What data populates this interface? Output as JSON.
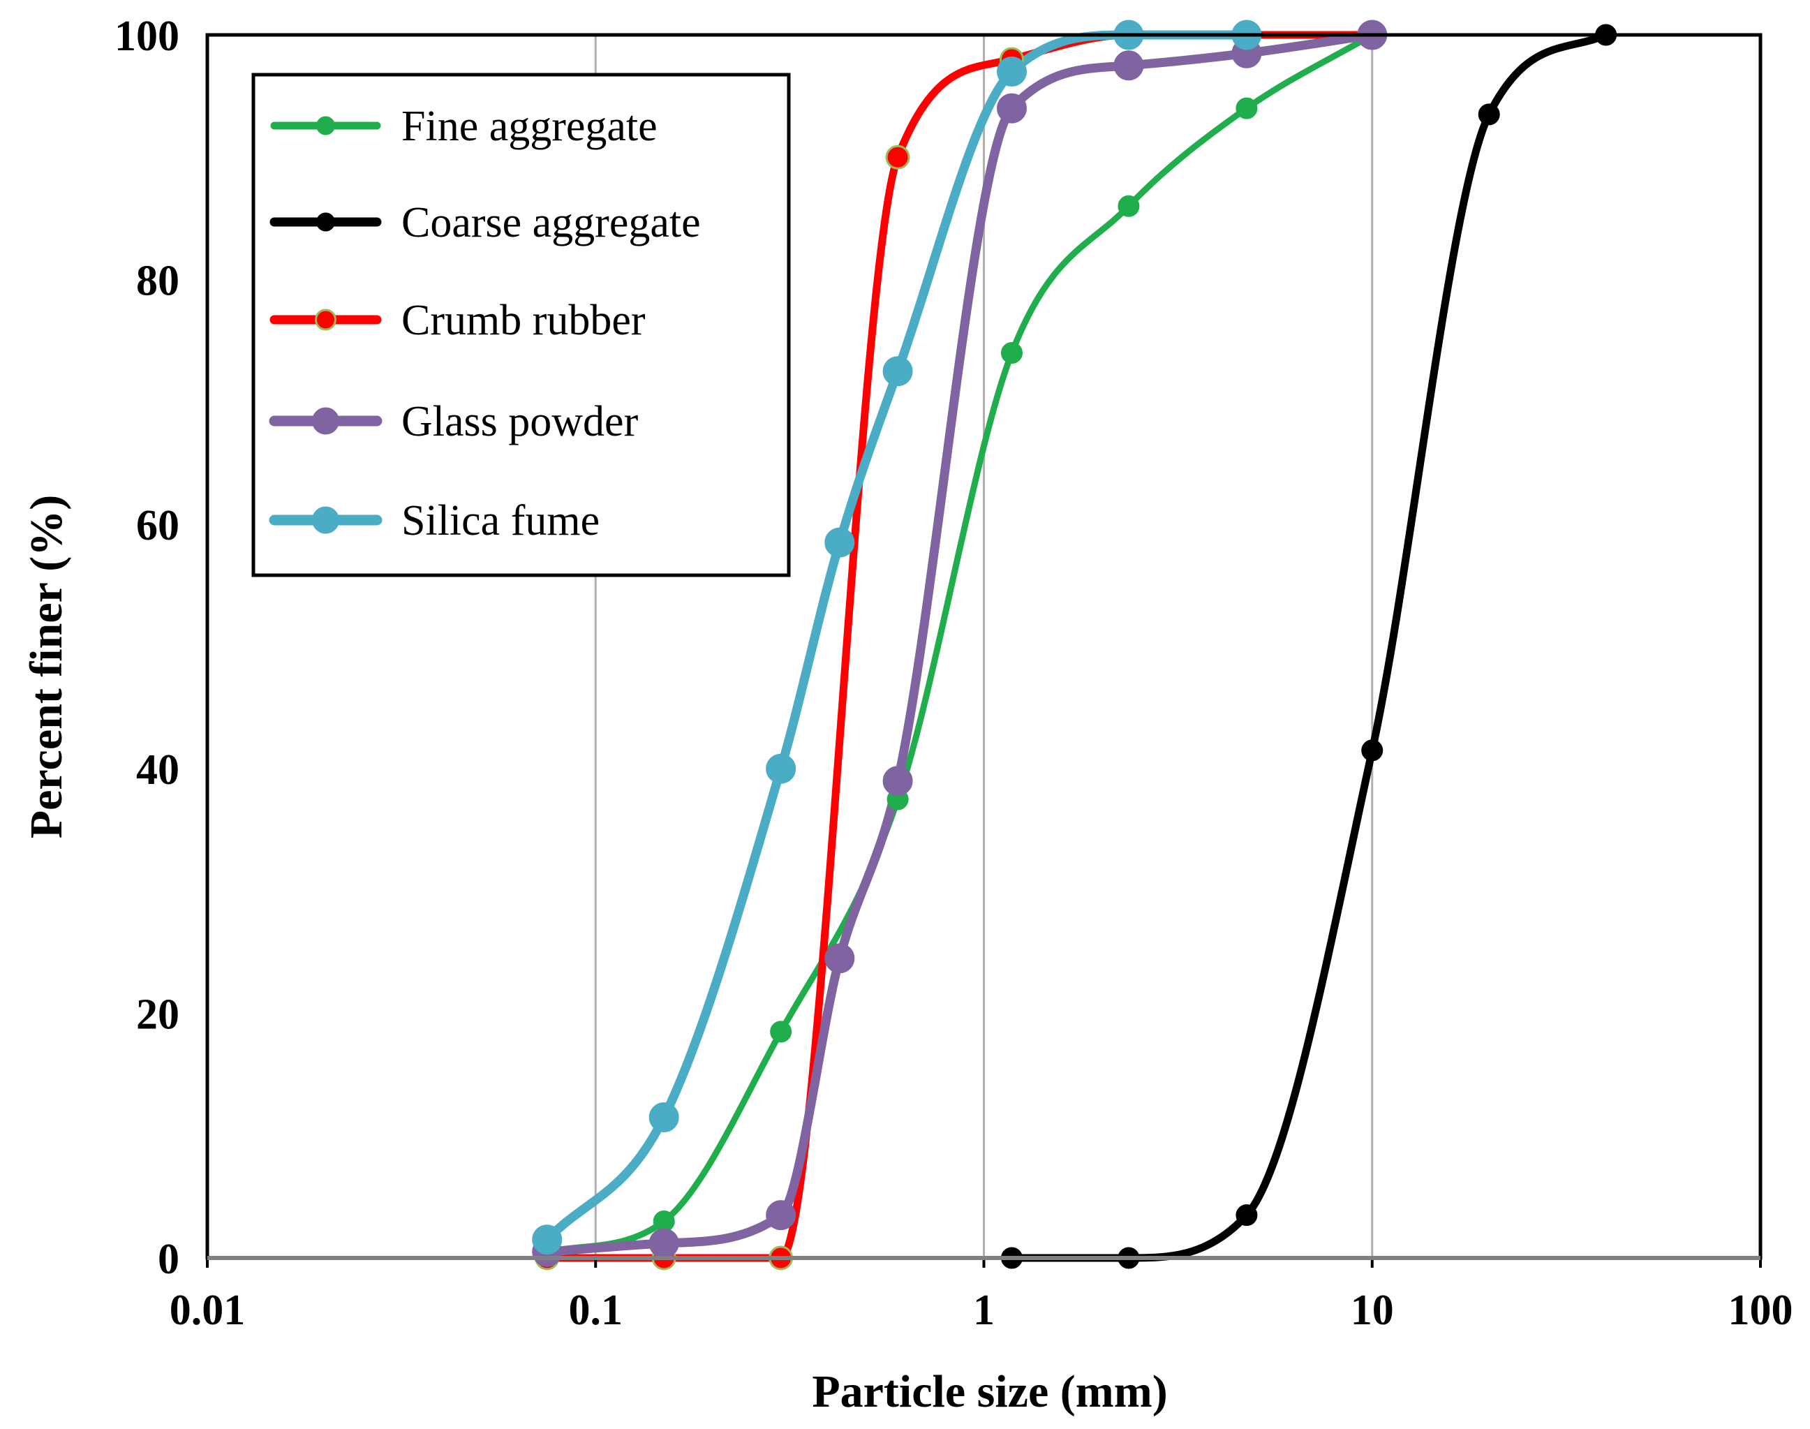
{
  "chart_data": {
    "type": "line",
    "title": "",
    "xlabel": "Particle size (mm)",
    "ylabel": "Percent finer (%)",
    "xscale": "log",
    "xlim": [
      0.01,
      100
    ],
    "ylim": [
      0,
      100
    ],
    "x_tick_labels": [
      "0.01",
      "0.1",
      "1",
      "10",
      "100"
    ],
    "y_tick_labels": [
      "0",
      "20",
      "40",
      "60",
      "80",
      "100"
    ],
    "grid": "vertical gridlines at decades",
    "legend_position": "top-left",
    "series": [
      {
        "name": "Fine aggregate",
        "color": "#1fae4b",
        "marker": "circle",
        "points": [
          {
            "x": 0.075,
            "y": 0.5
          },
          {
            "x": 0.15,
            "y": 3
          },
          {
            "x": 0.3,
            "y": 18.5
          },
          {
            "x": 0.6,
            "y": 37.5
          },
          {
            "x": 1.18,
            "y": 74
          },
          {
            "x": 2.36,
            "y": 86
          },
          {
            "x": 4.75,
            "y": 94
          },
          {
            "x": 10,
            "y": 100
          }
        ]
      },
      {
        "name": "Coarse aggregate",
        "color": "#000000",
        "marker": "circle",
        "points": [
          {
            "x": 1.18,
            "y": 0
          },
          {
            "x": 2.36,
            "y": 0
          },
          {
            "x": 4.75,
            "y": 3.5
          },
          {
            "x": 10,
            "y": 41.5
          },
          {
            "x": 20,
            "y": 93.5
          },
          {
            "x": 40,
            "y": 100
          }
        ]
      },
      {
        "name": "Crumb rubber",
        "color": "#ff0000",
        "marker": "circle",
        "points": [
          {
            "x": 0.075,
            "y": 0
          },
          {
            "x": 0.15,
            "y": 0
          },
          {
            "x": 0.3,
            "y": 0
          },
          {
            "x": 0.6,
            "y": 90
          },
          {
            "x": 1.18,
            "y": 98
          },
          {
            "x": 2.36,
            "y": 100
          },
          {
            "x": 4.75,
            "y": 100
          },
          {
            "x": 10,
            "y": 100
          }
        ]
      },
      {
        "name": "Glass powder",
        "color": "#8064a2",
        "marker": "circle",
        "points": [
          {
            "x": 0.075,
            "y": 0.5
          },
          {
            "x": 0.15,
            "y": 1.2
          },
          {
            "x": 0.3,
            "y": 3.5
          },
          {
            "x": 0.425,
            "y": 24.5
          },
          {
            "x": 0.6,
            "y": 39
          },
          {
            "x": 1.18,
            "y": 94
          },
          {
            "x": 2.36,
            "y": 97.5
          },
          {
            "x": 4.75,
            "y": 98.5
          },
          {
            "x": 10,
            "y": 100
          }
        ]
      },
      {
        "name": "Silica fume",
        "color": "#4bacc6",
        "marker": "circle",
        "points": [
          {
            "x": 0.075,
            "y": 1.5
          },
          {
            "x": 0.15,
            "y": 11.5
          },
          {
            "x": 0.3,
            "y": 40
          },
          {
            "x": 0.425,
            "y": 58.5
          },
          {
            "x": 0.6,
            "y": 72.5
          },
          {
            "x": 1.18,
            "y": 97
          },
          {
            "x": 2.36,
            "y": 100
          },
          {
            "x": 4.75,
            "y": 100
          }
        ]
      }
    ]
  }
}
